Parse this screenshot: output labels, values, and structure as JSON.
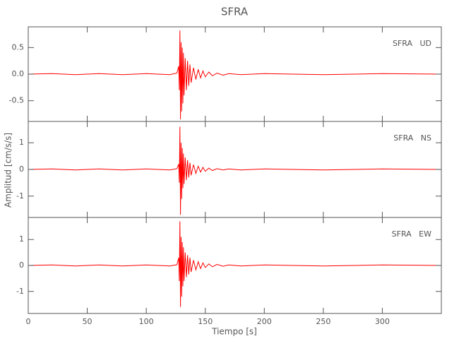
{
  "chart_data": [
    {
      "type": "line",
      "title": "SFRA",
      "label": "SFRA   UD",
      "color": "#ff0000",
      "x": [
        0,
        20,
        40,
        60,
        80,
        100,
        120,
        126,
        127.5,
        128,
        128.5,
        129,
        129.5,
        130,
        130.5,
        131,
        131.5,
        132,
        133,
        134,
        135,
        136,
        137,
        138,
        140,
        142,
        144,
        146,
        148,
        150,
        153,
        156,
        160,
        165,
        170,
        180,
        200,
        250,
        300,
        350
      ],
      "values": [
        0,
        0.01,
        -0.01,
        0.01,
        -0.01,
        0.01,
        -0.01,
        0.02,
        0.15,
        -0.3,
        0.82,
        -0.85,
        0.6,
        -0.7,
        0.5,
        -0.55,
        0.4,
        -0.4,
        0.3,
        -0.3,
        0.25,
        -0.22,
        0.18,
        -0.16,
        0.12,
        -0.1,
        0.09,
        -0.07,
        0.06,
        -0.05,
        0.04,
        -0.03,
        0.02,
        -0.02,
        0.01,
        -0.01,
        0.01,
        -0.01,
        0.01,
        0
      ],
      "xlim": [
        0,
        350
      ],
      "ylim": [
        -0.89,
        0.89
      ],
      "yticks": [
        {
          "value": -0.5,
          "label": "-0.5"
        },
        {
          "value": 0,
          "label": "0.0"
        },
        {
          "value": 0.5,
          "label": "0.5"
        }
      ]
    },
    {
      "type": "line",
      "y_label": "Amplitud [cm/s/s]",
      "label": "SFRA   NS",
      "color": "#ff0000",
      "x": [
        0,
        20,
        40,
        60,
        80,
        100,
        120,
        126,
        127.5,
        128,
        128.5,
        129,
        129.5,
        130,
        130.5,
        131,
        131.5,
        132,
        133,
        134,
        135,
        136,
        137,
        138,
        140,
        142,
        144,
        146,
        148,
        150,
        153,
        156,
        160,
        165,
        170,
        180,
        200,
        250,
        300,
        350
      ],
      "values": [
        0,
        0.02,
        -0.02,
        0.02,
        -0.02,
        0.02,
        -0.02,
        0.03,
        0.2,
        -0.5,
        1.6,
        -1.7,
        1.0,
        -1.1,
        0.8,
        -0.7,
        0.6,
        -0.55,
        0.45,
        -0.4,
        0.35,
        -0.3,
        0.25,
        -0.22,
        0.18,
        -0.15,
        0.12,
        -0.1,
        0.08,
        -0.07,
        0.05,
        -0.04,
        0.03,
        -0.02,
        0.02,
        -0.02,
        0.02,
        -0.02,
        0.02,
        0
      ],
      "xlim": [
        0,
        350
      ],
      "ylim": [
        -1.8,
        1.8
      ],
      "yticks": [
        -1,
        0,
        1
      ]
    },
    {
      "type": "line",
      "x_label": "Tiempo [s]",
      "label": "SFRA   EW",
      "color": "#ff0000",
      "x": [
        0,
        20,
        40,
        60,
        80,
        100,
        120,
        126,
        127.5,
        128,
        128.5,
        129,
        129.5,
        130,
        130.5,
        131,
        131.5,
        132,
        133,
        134,
        135,
        136,
        137,
        138,
        140,
        142,
        144,
        146,
        148,
        150,
        153,
        156,
        160,
        165,
        170,
        180,
        200,
        250,
        300,
        350
      ],
      "values": [
        0,
        0.02,
        -0.02,
        0.02,
        -0.02,
        0.02,
        -0.02,
        0.03,
        0.3,
        -0.6,
        1.7,
        -1.6,
        1.1,
        -1.2,
        0.9,
        -0.8,
        0.7,
        -0.6,
        0.5,
        -0.45,
        0.4,
        -0.35,
        0.3,
        -0.25,
        0.2,
        -0.17,
        0.14,
        -0.12,
        0.1,
        -0.08,
        0.06,
        -0.05,
        0.04,
        -0.03,
        0.02,
        -0.02,
        0.02,
        -0.02,
        0.02,
        0
      ],
      "xlim": [
        0,
        350
      ],
      "ylim": [
        -1.85,
        1.85
      ],
      "yticks": [
        -1,
        0,
        1
      ],
      "xticks": [
        0,
        50,
        100,
        150,
        200,
        250,
        300
      ]
    }
  ]
}
